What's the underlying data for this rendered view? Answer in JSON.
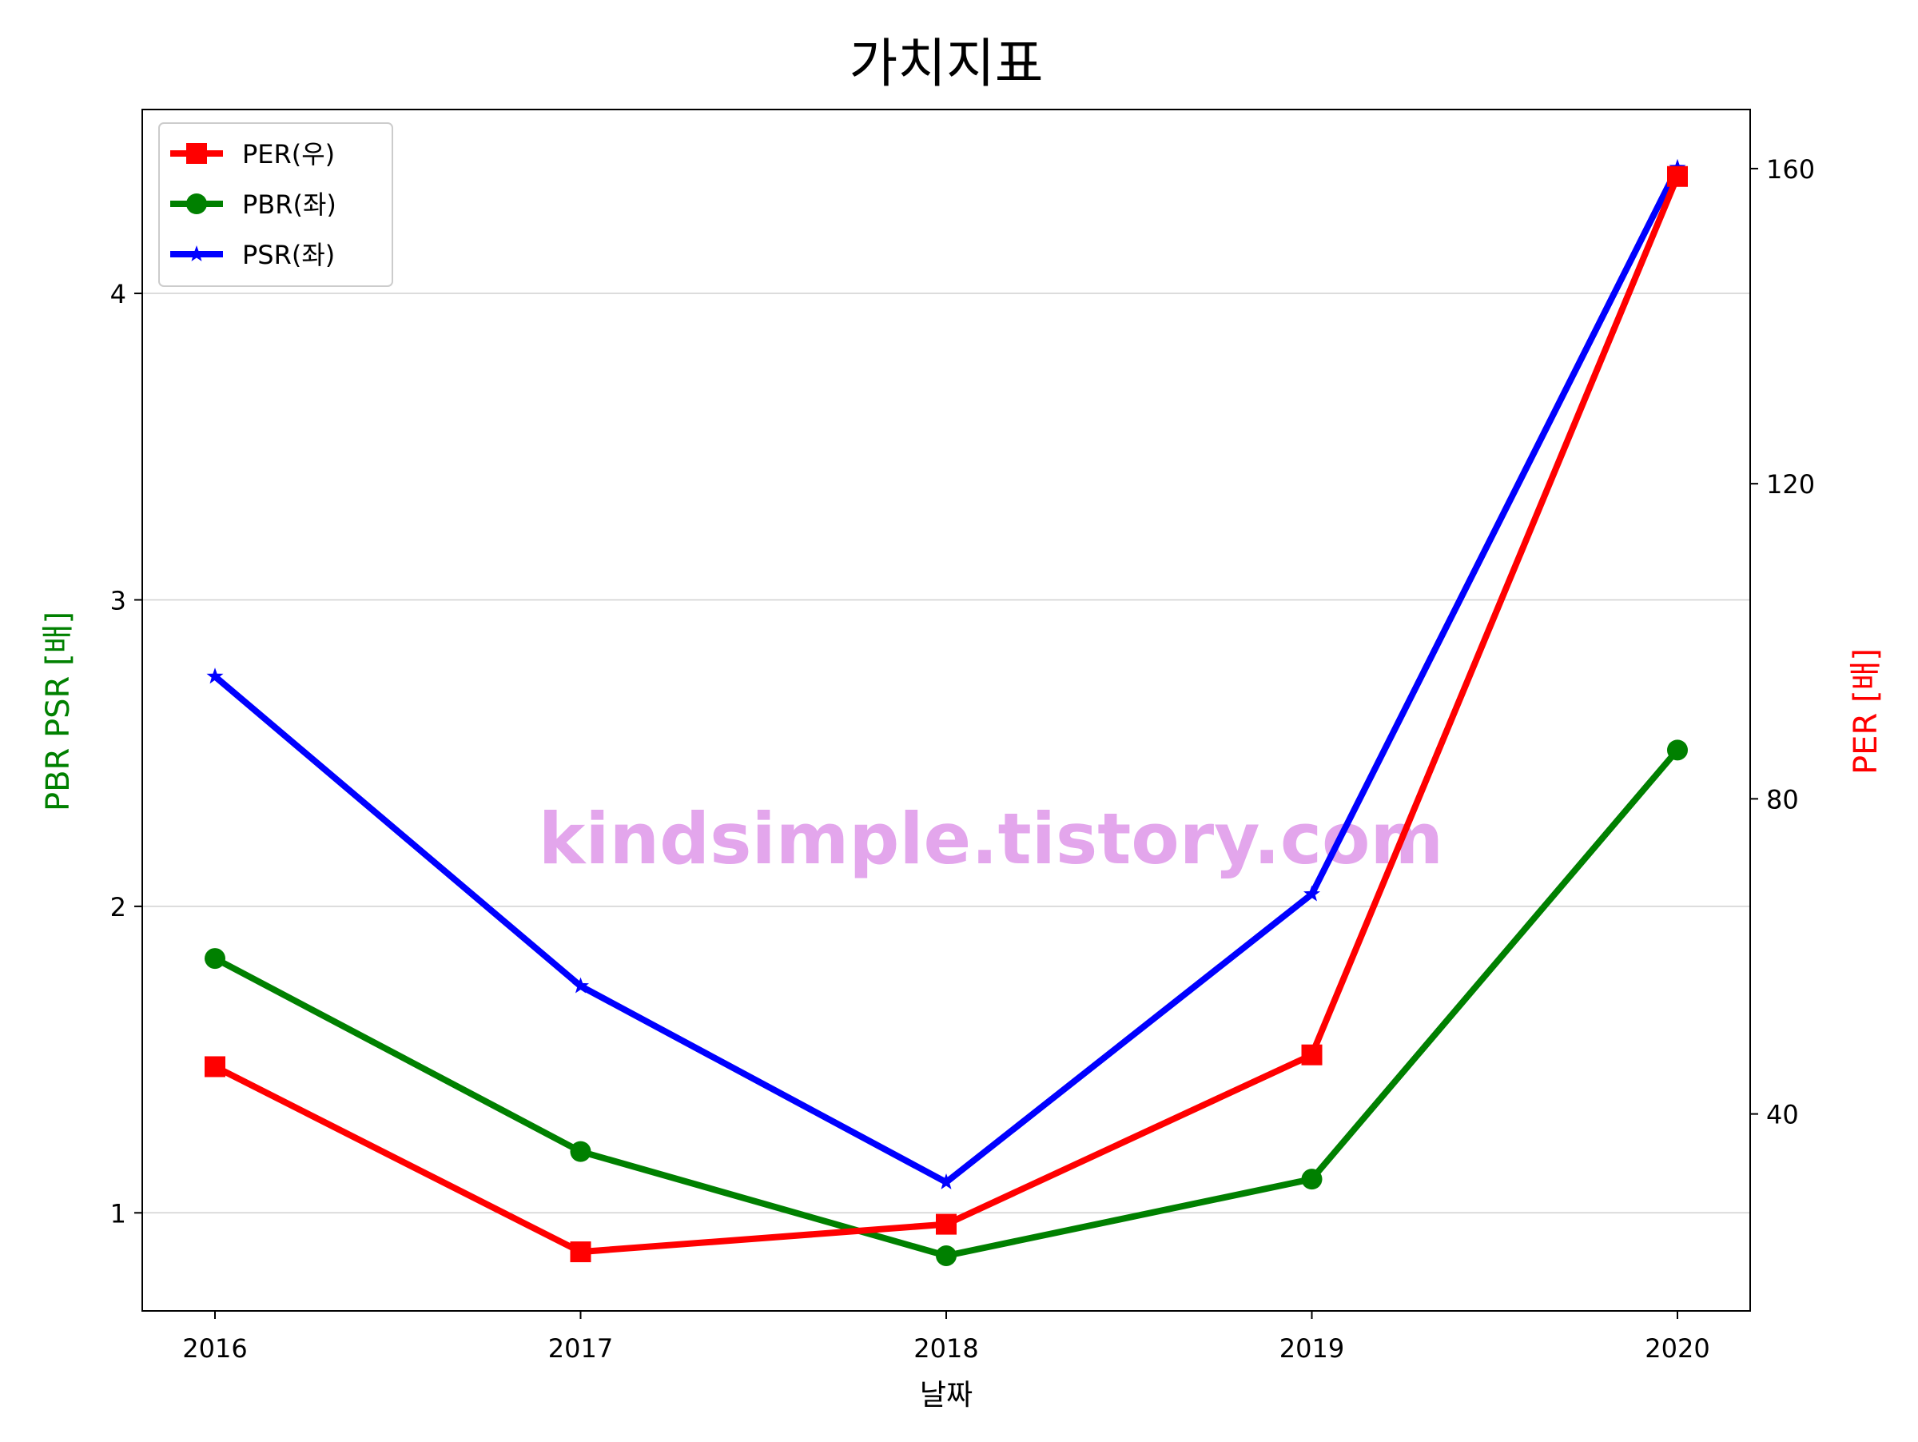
{
  "chart_data": {
    "type": "line",
    "title": "가치지표",
    "xlabel": "날짜",
    "ylabel_left": "PBR PSR [배]",
    "ylabel_right": "PER [배]",
    "categories": [
      "2016",
      "2017",
      "2018",
      "2019",
      "2020"
    ],
    "ylim_left": [
      0.68,
      4.6
    ],
    "ylim_right": [
      15,
      167.5
    ],
    "yticks_left": [
      1,
      2,
      3,
      4
    ],
    "yticks_right": [
      40,
      80,
      120,
      160
    ],
    "grid": "horizontal, left axis",
    "legend_position": "top-left",
    "series": [
      {
        "name": "PER(우)",
        "axis": "right",
        "color": "#ff0000",
        "marker": "square",
        "values": [
          46.0,
          22.5,
          26.0,
          47.5,
          159.0
        ]
      },
      {
        "name": "PBR(좌)",
        "axis": "left",
        "color": "#008000",
        "marker": "circle",
        "values": [
          1.83,
          1.2,
          0.86,
          1.11,
          2.51
        ]
      },
      {
        "name": "PSR(좌)",
        "axis": "left",
        "color": "#0000ff",
        "marker": "star",
        "values": [
          2.75,
          1.74,
          1.1,
          2.04,
          4.41
        ]
      }
    ]
  },
  "watermark": {
    "text": "kindsimple.tistory.com",
    "color": "#e3a6ec"
  }
}
